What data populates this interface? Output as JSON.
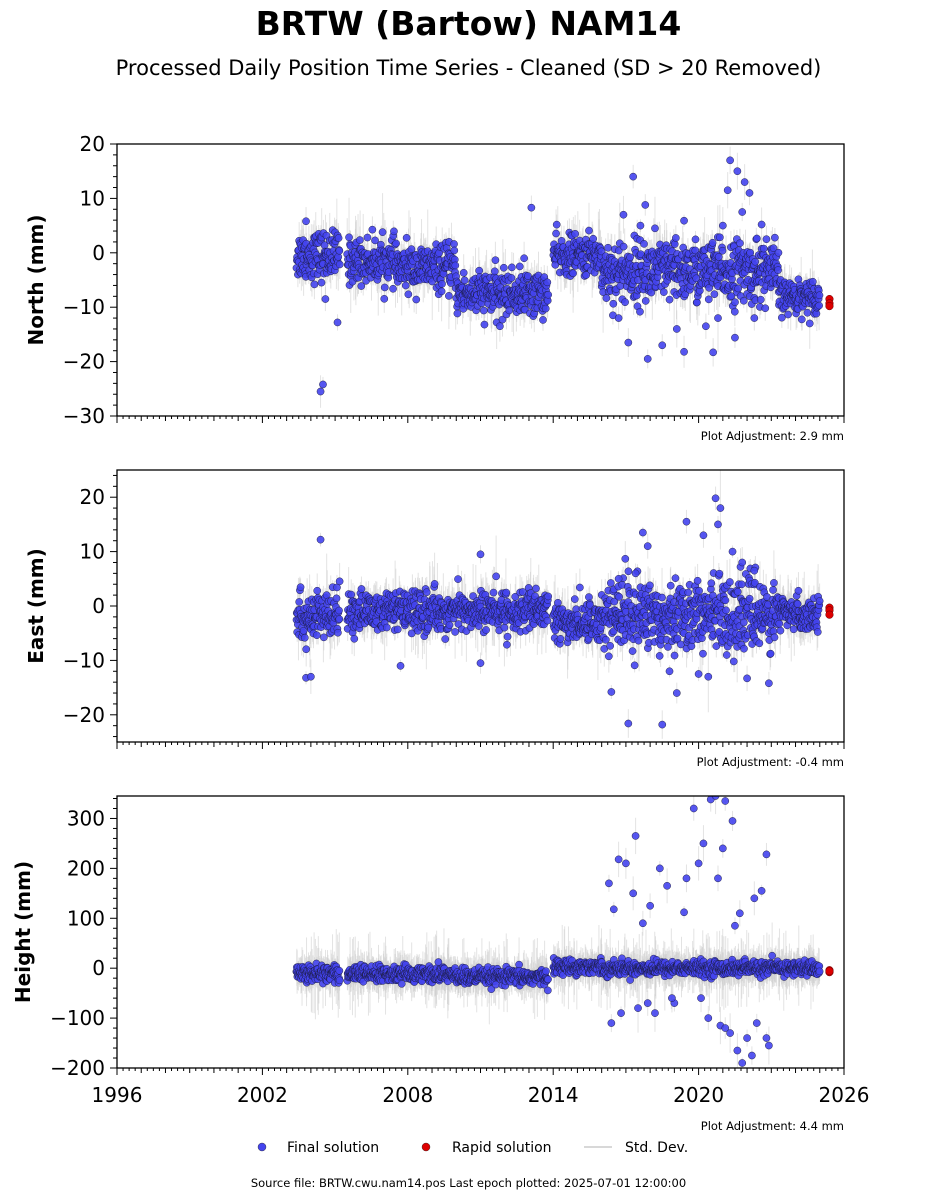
{
  "title": "BRTW (Bartow) NAM14",
  "subtitle": "Processed Daily Position Time Series - Cleaned (SD > 20 Removed)",
  "footer": "Source file: BRTW.cwu.nam14.pos  Last epoch plotted: 2025-07-01 12:00:00",
  "legend": {
    "items": [
      {
        "label": "Final solution",
        "color": "#4444ee",
        "kind": "marker"
      },
      {
        "label": "Rapid solution",
        "color": "#dd0000",
        "kind": "marker"
      },
      {
        "label": "Std. Dev.",
        "color": "#cccccc",
        "kind": "line"
      }
    ],
    "placement": "bottom-center"
  },
  "chart_data": [
    {
      "type": "scatter",
      "ylabel": "North (mm)",
      "xlim": [
        1996,
        2026
      ],
      "ylim": [
        -30,
        20
      ],
      "yticks": [
        -30,
        -20,
        -10,
        0,
        10,
        20
      ],
      "grid": false,
      "adjustment_label": "Plot Adjustment: 2.9 mm",
      "segments": [
        {
          "start": 2003.4,
          "end": 2005.2,
          "mean": -0.5,
          "spread": 2.2
        },
        {
          "start": 2005.5,
          "end": 2007.5,
          "mean": -1.5,
          "spread": 2.0
        },
        {
          "start": 2007.5,
          "end": 2010.0,
          "mean": -2.8,
          "spread": 2.0
        },
        {
          "start": 2010.0,
          "end": 2013.8,
          "mean": -7.5,
          "spread": 2.0
        },
        {
          "start": 2014.0,
          "end": 2016.0,
          "mean": -0.5,
          "spread": 1.8
        },
        {
          "start": 2016.0,
          "end": 2023.3,
          "mean": -3.5,
          "spread": 2.8
        },
        {
          "start": 2023.3,
          "end": 2025.0,
          "mean": -8.0,
          "spread": 1.5
        }
      ],
      "outliers": [
        [
          2003.8,
          5.8
        ],
        [
          2004.4,
          -25.5
        ],
        [
          2004.5,
          -24.2
        ],
        [
          2004.6,
          -8.5
        ],
        [
          2005.1,
          -12.8
        ],
        [
          2011.8,
          -13.5
        ],
        [
          2013.1,
          8.3
        ],
        [
          2012.8,
          -1.0
        ],
        [
          2017.3,
          14.0
        ],
        [
          2017.9,
          -19.5
        ],
        [
          2017.8,
          8.8
        ],
        [
          2017.1,
          -16.5
        ],
        [
          2019.4,
          5.9
        ],
        [
          2019.4,
          -18.2
        ],
        [
          2020.6,
          -18.3
        ],
        [
          2021.3,
          17.0
        ],
        [
          2021.6,
          15.0
        ],
        [
          2021.9,
          13.0
        ],
        [
          2021.2,
          11.5
        ],
        [
          2022.1,
          11.0
        ],
        [
          2021.8,
          7.5
        ],
        [
          2021.5,
          -15.6
        ],
        [
          2020.3,
          -13.5
        ],
        [
          2018.5,
          -17.0
        ],
        [
          2016.7,
          -12.0
        ],
        [
          2022.6,
          5.2
        ],
        [
          2016.9,
          7.0
        ],
        [
          2022.3,
          -12.0
        ],
        [
          2021.0,
          5.0
        ],
        [
          2018.2,
          4.5
        ],
        [
          2019.1,
          -14.0
        ],
        [
          2017.6,
          5.0
        ],
        [
          2022.8,
          2.5
        ],
        [
          2020.8,
          -12.0
        ]
      ],
      "rapid_solution": {
        "x": 2025.4,
        "y": [
          -8.5,
          -9.3,
          -9.8
        ]
      }
    },
    {
      "type": "scatter",
      "ylabel": "East (mm)",
      "xlim": [
        1996,
        2026
      ],
      "ylim": [
        -25,
        25
      ],
      "yticks": [
        -20,
        -10,
        0,
        10,
        20
      ],
      "grid": false,
      "adjustment_label": "Plot Adjustment: -0.4 mm",
      "segments": [
        {
          "start": 2003.4,
          "end": 2005.2,
          "mean": -2.0,
          "spread": 2.2
        },
        {
          "start": 2005.5,
          "end": 2013.8,
          "mean": -1.0,
          "spread": 1.8
        },
        {
          "start": 2014.0,
          "end": 2016.0,
          "mean": -3.0,
          "spread": 1.8
        },
        {
          "start": 2016.0,
          "end": 2023.3,
          "mean": -1.5,
          "spread": 3.2
        },
        {
          "start": 2023.3,
          "end": 2025.0,
          "mean": -1.5,
          "spread": 1.5
        }
      ],
      "outliers": [
        [
          2004.4,
          12.2
        ],
        [
          2003.8,
          -13.2
        ],
        [
          2004.0,
          -13.0
        ],
        [
          2007.7,
          -11.0
        ],
        [
          2011.0,
          9.5
        ],
        [
          2011.0,
          -10.5
        ],
        [
          2016.4,
          -15.8
        ],
        [
          2017.1,
          -21.6
        ],
        [
          2017.7,
          13.5
        ],
        [
          2018.5,
          -21.8
        ],
        [
          2019.1,
          -16.0
        ],
        [
          2019.5,
          15.5
        ],
        [
          2020.2,
          13.0
        ],
        [
          2020.7,
          19.8
        ],
        [
          2020.9,
          18.0
        ],
        [
          2020.8,
          15.0
        ],
        [
          2021.4,
          10.0
        ],
        [
          2022.0,
          -13.3
        ],
        [
          2022.9,
          -14.2
        ],
        [
          2017.9,
          11.0
        ],
        [
          2020.4,
          -13.0
        ],
        [
          2018.8,
          -12.0
        ],
        [
          2021.8,
          8.0
        ],
        [
          2016.7,
          5.0
        ],
        [
          2015.1,
          3.4
        ],
        [
          2020.0,
          -12.5
        ],
        [
          2022.3,
          6.5
        ],
        [
          2017.4,
          6.0
        ]
      ],
      "rapid_solution": {
        "x": 2025.4,
        "y": [
          -0.3,
          -0.8,
          -1.6
        ]
      }
    },
    {
      "type": "scatter",
      "ylabel": "Height (mm)",
      "xlim": [
        1996,
        2026
      ],
      "ylim": [
        -200,
        345
      ],
      "yticks": [
        -200,
        -100,
        0,
        100,
        200,
        300
      ],
      "xticks": [
        1996,
        2002,
        2008,
        2014,
        2020,
        2026
      ],
      "grid": false,
      "adjustment_label": "Plot Adjustment: 4.4 mm",
      "segments": [
        {
          "start": 2003.4,
          "end": 2005.2,
          "mean": -10,
          "spread": 9
        },
        {
          "start": 2005.5,
          "end": 2010.0,
          "mean": -12,
          "spread": 8
        },
        {
          "start": 2010.0,
          "end": 2013.8,
          "mean": -18,
          "spread": 8
        },
        {
          "start": 2014.0,
          "end": 2016.0,
          "mean": 3,
          "spread": 7
        },
        {
          "start": 2016.0,
          "end": 2025.0,
          "mean": 0,
          "spread": 7
        }
      ],
      "outliers": [
        [
          2019.8,
          320
        ],
        [
          2020.5,
          338
        ],
        [
          2020.7,
          345
        ],
        [
          2021.1,
          335
        ],
        [
          2021.4,
          295
        ],
        [
          2022.8,
          228
        ],
        [
          2017.4,
          265
        ],
        [
          2016.7,
          218
        ],
        [
          2017.0,
          210
        ],
        [
          2018.4,
          200
        ],
        [
          2019.5,
          180
        ],
        [
          2020.2,
          250
        ],
        [
          2021.0,
          240
        ],
        [
          2020.0,
          210
        ],
        [
          2017.3,
          150
        ],
        [
          2016.3,
          170
        ],
        [
          2018.0,
          125
        ],
        [
          2021.7,
          110
        ],
        [
          2022.3,
          140
        ],
        [
          2022.6,
          155
        ],
        [
          2019.4,
          112
        ],
        [
          2016.5,
          118
        ],
        [
          2018.7,
          165
        ],
        [
          2020.8,
          180
        ],
        [
          2021.5,
          85
        ],
        [
          2017.7,
          90
        ],
        [
          2016.4,
          -110
        ],
        [
          2016.8,
          -90
        ],
        [
          2017.5,
          -80
        ],
        [
          2018.2,
          -90
        ],
        [
          2019.0,
          -70
        ],
        [
          2020.4,
          -100
        ],
        [
          2020.9,
          -115
        ],
        [
          2021.3,
          -130
        ],
        [
          2021.6,
          -165
        ],
        [
          2021.8,
          -190
        ],
        [
          2022.0,
          -140
        ],
        [
          2022.2,
          -175
        ],
        [
          2022.4,
          -110
        ],
        [
          2022.8,
          -140
        ],
        [
          2022.9,
          -155
        ],
        [
          2021.1,
          -120
        ],
        [
          2020.1,
          -60
        ],
        [
          2018.9,
          -60
        ],
        [
          2017.9,
          -70
        ]
      ],
      "rapid_solution": {
        "x": 2025.4,
        "y": [
          -4,
          -8,
          -6
        ]
      }
    }
  ]
}
